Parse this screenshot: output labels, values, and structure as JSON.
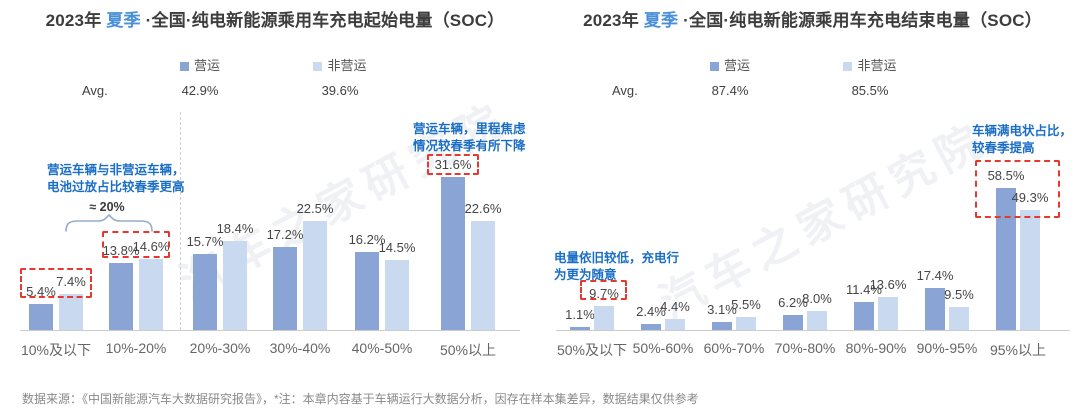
{
  "colors": {
    "operating": "#8AA4D6",
    "non_operating": "#C9DAF0",
    "annotation_blue": "#1B6EC5",
    "highlight_red": "#E5392F",
    "season_blue": "#4A90D9",
    "brace_gray_blue": "#94AECB"
  },
  "watermark_text": "汽车之家研究院",
  "footer_note": "数据来源：《中国新能源汽车大数据研究报告》，*注：本章内容基于车辆运行大数据分析，因存在样本集差异，数据结果仅供参考",
  "chart_data": [
    {
      "type": "bar",
      "title": {
        "prefix": "2023年 ",
        "season": "夏季",
        "suffix": " ·全国·纯电新能源乘用车充电起始电量（SOC）"
      },
      "legend": [
        "营运",
        "非营运"
      ],
      "legend_position": "top",
      "grid": false,
      "unit": "%",
      "ylim": [
        0,
        35
      ],
      "avg": {
        "label": "Avg.",
        "values": [
          "42.9%",
          "39.6%"
        ]
      },
      "categories": [
        "10%及以下",
        "10%-20%",
        "20%-30%",
        "30%-40%",
        "40%-50%",
        "50%以上"
      ],
      "series": [
        {
          "name": "营运",
          "values": [
            5.4,
            13.8,
            15.7,
            17.2,
            16.2,
            31.6
          ]
        },
        {
          "name": "非营运",
          "values": [
            7.4,
            14.6,
            18.4,
            22.5,
            14.5,
            22.6
          ]
        }
      ],
      "annotations": {
        "overdischarge": "营运车辆与非营运车辆，\n电池过放占比较春季更高",
        "approx": "≈ 20%",
        "range_anxiety": "营运车辆，里程焦虑\n情况较春季有所下降"
      }
    },
    {
      "type": "bar",
      "title": {
        "prefix": "2023年 ",
        "season": "夏季",
        "suffix": " ·全国·纯电新能源乘用车充电结束电量（SOC）"
      },
      "legend": [
        "营运",
        "非营运"
      ],
      "legend_position": "top",
      "grid": false,
      "unit": "%",
      "ylim": [
        0,
        60
      ],
      "avg": {
        "label": "Avg.",
        "values": [
          "87.4%",
          "85.5%"
        ]
      },
      "categories": [
        "50%及以下",
        "50%-60%",
        "60%-70%",
        "70%-80%",
        "80%-90%",
        "90%-95%",
        "95%以上"
      ],
      "series": [
        {
          "name": "营运",
          "values": [
            1.1,
            2.4,
            3.1,
            6.2,
            11.4,
            17.4,
            58.5
          ]
        },
        {
          "name": "非营运",
          "values": [
            9.7,
            4.4,
            5.5,
            8.0,
            13.6,
            9.5,
            49.3
          ]
        }
      ],
      "annotations": {
        "low_soc": "电量依旧较低，充电行\n为更为随意",
        "full_charge": "车辆满电状占比，\n较春季提高"
      }
    }
  ]
}
